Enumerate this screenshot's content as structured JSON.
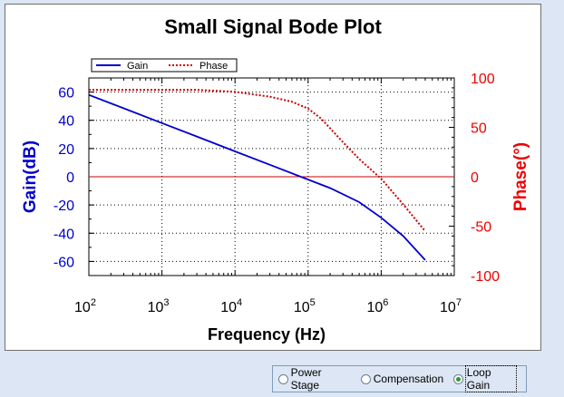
{
  "chart_data": {
    "type": "line",
    "title": "Small Signal Bode Plot",
    "xlabel": "Frequency (Hz)",
    "ylabel_left": "Gain(dB)",
    "ylabel_right": "Phase(°)",
    "x_scale": "log",
    "xlim": [
      100,
      10000000
    ],
    "x_ticks": [
      {
        "base": "10",
        "exp": "2",
        "value": 100
      },
      {
        "base": "10",
        "exp": "3",
        "value": 1000
      },
      {
        "base": "10",
        "exp": "4",
        "value": 10000
      },
      {
        "base": "10",
        "exp": "5",
        "value": 100000
      },
      {
        "base": "10",
        "exp": "6",
        "value": 1000000
      },
      {
        "base": "10",
        "exp": "7",
        "value": 10000000
      }
    ],
    "ylim_left": [
      -70,
      70
    ],
    "y_ticks_left": [
      "60",
      "40",
      "20",
      "0",
      "-20",
      "-40",
      "-60"
    ],
    "ylim_right": [
      -100,
      100
    ],
    "y_ticks_right": [
      "100",
      "50",
      "0",
      "-50",
      "-100"
    ],
    "grid": true,
    "legend_position": "top-left",
    "series": [
      {
        "name": "Gain",
        "axis": "left",
        "color": "#0000cc",
        "style": "solid",
        "x": [
          100,
          300,
          1000,
          3000,
          10000,
          30000,
          100000,
          200000,
          500000,
          1000000,
          2000000,
          4000000
        ],
        "y": [
          58,
          48.5,
          38,
          28.5,
          18,
          8.5,
          -2,
          -8,
          -18,
          -29,
          -42,
          -59
        ]
      },
      {
        "name": "Phase",
        "axis": "right",
        "color": "#cc0000",
        "style": "dotted",
        "x": [
          100,
          1000,
          3000,
          10000,
          30000,
          60000,
          100000,
          150000,
          200000,
          300000,
          500000,
          1000000,
          2000000,
          4000000
        ],
        "y": [
          88,
          88,
          88,
          86,
          81,
          76,
          69,
          59,
          49,
          35,
          18,
          -2,
          -28,
          -55
        ]
      }
    ],
    "reference_lines": [
      {
        "axis": "left",
        "y": 0,
        "color": "#cc0000"
      }
    ]
  },
  "controls": {
    "options": [
      {
        "label": "Power Stage",
        "checked": false
      },
      {
        "label": "Compensation",
        "checked": false
      },
      {
        "label": "Loop Gain",
        "checked": true
      }
    ]
  }
}
